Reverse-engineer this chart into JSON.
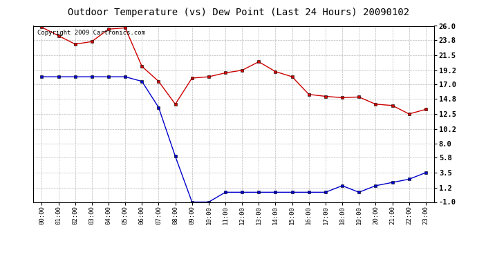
{
  "title": "Outdoor Temperature (vs) Dew Point (Last 24 Hours) 20090102",
  "copyright_text": "Copyright 2009 Cartronics.com",
  "hours": [
    "00:00",
    "01:00",
    "02:00",
    "03:00",
    "04:00",
    "05:00",
    "06:00",
    "07:00",
    "08:00",
    "09:00",
    "10:00",
    "11:00",
    "12:00",
    "13:00",
    "14:00",
    "15:00",
    "16:00",
    "17:00",
    "18:00",
    "19:00",
    "20:00",
    "21:00",
    "22:00",
    "23:00"
  ],
  "temp_red": [
    25.8,
    24.5,
    23.2,
    23.6,
    25.5,
    25.7,
    19.8,
    17.5,
    14.0,
    18.0,
    18.2,
    18.8,
    19.2,
    20.5,
    19.0,
    18.2,
    15.5,
    15.2,
    15.0,
    15.1,
    14.0,
    13.8,
    12.5,
    13.2
  ],
  "temp_blue": [
    18.2,
    18.2,
    18.2,
    18.2,
    18.2,
    18.2,
    17.5,
    13.5,
    6.0,
    -1.0,
    -1.0,
    0.5,
    0.5,
    0.5,
    0.5,
    0.5,
    0.5,
    0.5,
    1.5,
    0.5,
    1.5,
    2.0,
    2.5,
    3.5
  ],
  "ylim": [
    -1.0,
    26.0
  ],
  "yticks": [
    -1.0,
    1.2,
    3.5,
    5.8,
    8.0,
    10.2,
    12.5,
    14.8,
    17.0,
    19.2,
    21.5,
    23.8,
    26.0
  ],
  "red_color": "#cc0000",
  "blue_color": "#0000cc",
  "grid_color": "#aaaaaa",
  "bg_color": "#ffffff",
  "title_fontsize": 10,
  "copyright_fontsize": 6.5
}
